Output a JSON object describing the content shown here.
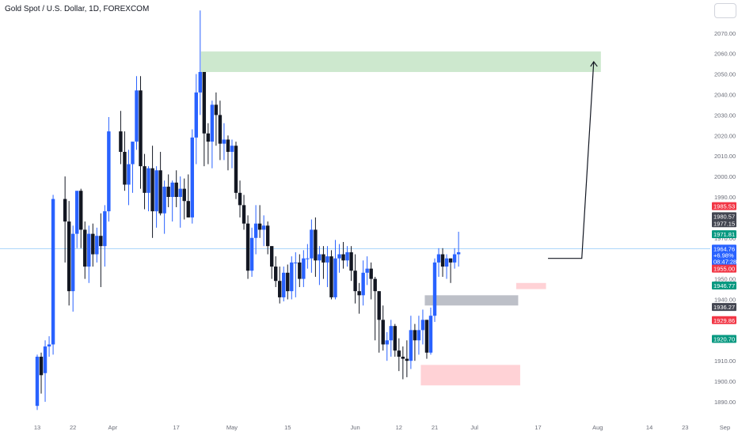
{
  "title": "Gold Spot / U.S. Dollar, 1D, FOREXCOM",
  "colors": {
    "up": "#2962ff",
    "down": "#131722",
    "target_zone": "#c8e6c9",
    "demand_zone": "#ffcdd2",
    "gray_zone": "#b2b5be",
    "crosshair": "#90caf9"
  },
  "chart_data": {
    "type": "candlestick",
    "symbol": "Gold Spot / U.S. Dollar",
    "interval": "1D",
    "source": "FOREXCOM",
    "ylim": [
      1886,
      2076
    ],
    "y_ticks": [
      "1890.00",
      "1900.00",
      "1910.00",
      "1920.00",
      "1930.00",
      "1940.00",
      "1950.00",
      "1960.00",
      "1970.00",
      "1980.00",
      "1990.00",
      "2000.00",
      "2010.00",
      "2020.00",
      "2030.00",
      "2040.00",
      "2050.00",
      "2060.00",
      "2070.00"
    ],
    "x_ticks": [
      {
        "label": "13",
        "day": 0
      },
      {
        "label": "22",
        "day": 9
      },
      {
        "label": "Apr",
        "day": 19
      },
      {
        "label": "17",
        "day": 35
      },
      {
        "label": "May",
        "day": 49
      },
      {
        "label": "15",
        "day": 63
      },
      {
        "label": "Jun",
        "day": 80
      },
      {
        "label": "12",
        "day": 91
      },
      {
        "label": "21",
        "day": 100
      },
      {
        "label": "Jul",
        "day": 110
      },
      {
        "label": "17",
        "day": 126
      },
      {
        "label": "Aug",
        "day": 141
      },
      {
        "label": "14",
        "day": 154
      },
      {
        "label": "23",
        "day": 163
      },
      {
        "label": "Sep",
        "day": 173
      }
    ],
    "candles": [
      {
        "day": 0,
        "o": 1888,
        "h": 1913,
        "l": 1886,
        "c": 1912
      },
      {
        "day": 1,
        "o": 1912,
        "h": 1914,
        "l": 1894,
        "c": 1903
      },
      {
        "day": 2,
        "o": 1904,
        "h": 1920,
        "l": 1890,
        "c": 1917
      },
      {
        "day": 3,
        "o": 1917,
        "h": 1922,
        "l": 1912,
        "c": 1918
      },
      {
        "day": 4,
        "o": 1918,
        "h": 1991,
        "l": 1913,
        "c": 1989
      },
      {
        "day": 7,
        "o": 1989,
        "h": 2000,
        "l": 1958,
        "c": 1978
      },
      {
        "day": 8,
        "o": 1978,
        "h": 1988,
        "l": 1937,
        "c": 1944
      },
      {
        "day": 9,
        "o": 1944,
        "h": 1976,
        "l": 1934,
        "c": 1972
      },
      {
        "day": 10,
        "o": 1972,
        "h": 1992,
        "l": 1965,
        "c": 1993
      },
      {
        "day": 11,
        "o": 1993,
        "h": 1994,
        "l": 1965,
        "c": 1974
      },
      {
        "day": 12,
        "o": 1974,
        "h": 1978,
        "l": 1950,
        "c": 1956
      },
      {
        "day": 13,
        "o": 1956,
        "h": 1976,
        "l": 1948,
        "c": 1972
      },
      {
        "day": 14,
        "o": 1972,
        "h": 1977,
        "l": 1956,
        "c": 1962
      },
      {
        "day": 15,
        "o": 1962,
        "h": 1975,
        "l": 1958,
        "c": 1971
      },
      {
        "day": 16,
        "o": 1971,
        "h": 1982,
        "l": 1946,
        "c": 1966
      },
      {
        "day": 17,
        "o": 1966,
        "h": 1986,
        "l": 1956,
        "c": 1983
      },
      {
        "day": 18,
        "o": 1983,
        "h": 2029,
        "l": 1978,
        "c": 2022
      },
      {
        "day": 21,
        "o": 2022,
        "h": 2032,
        "l": 2006,
        "c": 2012
      },
      {
        "day": 22,
        "o": 2012,
        "h": 2022,
        "l": 1993,
        "c": 1996
      },
      {
        "day": 23,
        "o": 1996,
        "h": 2013,
        "l": 1986,
        "c": 2006
      },
      {
        "day": 24,
        "o": 2006,
        "h": 2017,
        "l": 1992,
        "c": 2017
      },
      {
        "day": 25,
        "o": 2017,
        "h": 2049,
        "l": 2013,
        "c": 2042
      },
      {
        "day": 26,
        "o": 2042,
        "h": 2049,
        "l": 1994,
        "c": 2005
      },
      {
        "day": 27,
        "o": 2005,
        "h": 2011,
        "l": 1984,
        "c": 1992
      },
      {
        "day": 28,
        "o": 1992,
        "h": 2005,
        "l": 1983,
        "c": 2004
      },
      {
        "day": 29,
        "o": 2004,
        "h": 2015,
        "l": 1970,
        "c": 1983
      },
      {
        "day": 30,
        "o": 1983,
        "h": 2005,
        "l": 1975,
        "c": 2003
      },
      {
        "day": 31,
        "o": 2003,
        "h": 2012,
        "l": 1981,
        "c": 1982
      },
      {
        "day": 32,
        "o": 1982,
        "h": 1998,
        "l": 1972,
        "c": 1995
      },
      {
        "day": 33,
        "o": 1995,
        "h": 2001,
        "l": 1985,
        "c": 1990
      },
      {
        "day": 34,
        "o": 1990,
        "h": 1998,
        "l": 1978,
        "c": 1997
      },
      {
        "day": 35,
        "o": 1997,
        "h": 2003,
        "l": 1985,
        "c": 1990
      },
      {
        "day": 36,
        "o": 1990,
        "h": 2000,
        "l": 1975,
        "c": 1994
      },
      {
        "day": 37,
        "o": 1994,
        "h": 1999,
        "l": 1979,
        "c": 1988
      },
      {
        "day": 38,
        "o": 1988,
        "h": 2001,
        "l": 1980,
        "c": 1980
      },
      {
        "day": 39,
        "o": 1980,
        "h": 2023,
        "l": 1977,
        "c": 2019
      },
      {
        "day": 40,
        "o": 2019,
        "h": 2050,
        "l": 2006,
        "c": 2041
      },
      {
        "day": 41,
        "o": 2041,
        "h": 2081,
        "l": 2030,
        "c": 2051
      },
      {
        "day": 42,
        "o": 2051,
        "h": 2051,
        "l": 2005,
        "c": 2021
      },
      {
        "day": 43,
        "o": 2021,
        "h": 2026,
        "l": 2006,
        "c": 2017
      },
      {
        "day": 44,
        "o": 2017,
        "h": 2037,
        "l": 2004,
        "c": 2035
      },
      {
        "day": 45,
        "o": 2035,
        "h": 2041,
        "l": 2015,
        "c": 2030
      },
      {
        "day": 46,
        "o": 2030,
        "h": 2037,
        "l": 2008,
        "c": 2016
      },
      {
        "day": 47,
        "o": 2016,
        "h": 2026,
        "l": 2008,
        "c": 2018
      },
      {
        "day": 48,
        "o": 2018,
        "h": 2020,
        "l": 2003,
        "c": 2012
      },
      {
        "day": 49,
        "o": 2012,
        "h": 2018,
        "l": 2004,
        "c": 2015
      },
      {
        "day": 50,
        "o": 2015,
        "h": 2017,
        "l": 1989,
        "c": 1992
      },
      {
        "day": 51,
        "o": 1992,
        "h": 1998,
        "l": 1980,
        "c": 1986
      },
      {
        "day": 52,
        "o": 1986,
        "h": 1991,
        "l": 1974,
        "c": 1977
      },
      {
        "day": 53,
        "o": 1977,
        "h": 1981,
        "l": 1950,
        "c": 1954
      },
      {
        "day": 54,
        "o": 1954,
        "h": 1975,
        "l": 1951,
        "c": 1970
      },
      {
        "day": 55,
        "o": 1970,
        "h": 1986,
        "l": 1962,
        "c": 1977
      },
      {
        "day": 56,
        "o": 1977,
        "h": 1986,
        "l": 1970,
        "c": 1974
      },
      {
        "day": 57,
        "o": 1974,
        "h": 1981,
        "l": 1966,
        "c": 1976
      },
      {
        "day": 58,
        "o": 1976,
        "h": 1978,
        "l": 1962,
        "c": 1966
      },
      {
        "day": 59,
        "o": 1966,
        "h": 1966,
        "l": 1950,
        "c": 1956
      },
      {
        "day": 60,
        "o": 1956,
        "h": 1961,
        "l": 1946,
        "c": 1949
      },
      {
        "day": 61,
        "o": 1949,
        "h": 1956,
        "l": 1938,
        "c": 1941
      },
      {
        "day": 62,
        "o": 1941,
        "h": 1956,
        "l": 1939,
        "c": 1953
      },
      {
        "day": 63,
        "o": 1953,
        "h": 1957,
        "l": 1940,
        "c": 1944
      },
      {
        "day": 64,
        "o": 1944,
        "h": 1961,
        "l": 1940,
        "c": 1958
      },
      {
        "day": 65,
        "o": 1958,
        "h": 1963,
        "l": 1941,
        "c": 1958
      },
      {
        "day": 66,
        "o": 1958,
        "h": 1962,
        "l": 1946,
        "c": 1950
      },
      {
        "day": 67,
        "o": 1950,
        "h": 1964,
        "l": 1946,
        "c": 1960
      },
      {
        "day": 68,
        "o": 1960,
        "h": 1967,
        "l": 1955,
        "c": 1960
      },
      {
        "day": 69,
        "o": 1960,
        "h": 1979,
        "l": 1953,
        "c": 1974
      },
      {
        "day": 70,
        "o": 1974,
        "h": 1980,
        "l": 1951,
        "c": 1959
      },
      {
        "day": 71,
        "o": 1959,
        "h": 1966,
        "l": 1947,
        "c": 1962
      },
      {
        "day": 72,
        "o": 1962,
        "h": 1966,
        "l": 1950,
        "c": 1958
      },
      {
        "day": 73,
        "o": 1958,
        "h": 1966,
        "l": 1946,
        "c": 1961
      },
      {
        "day": 74,
        "o": 1961,
        "h": 1964,
        "l": 1940,
        "c": 1941
      },
      {
        "day": 75,
        "o": 1941,
        "h": 1969,
        "l": 1940,
        "c": 1960
      },
      {
        "day": 76,
        "o": 1960,
        "h": 1967,
        "l": 1953,
        "c": 1962
      },
      {
        "day": 77,
        "o": 1962,
        "h": 1968,
        "l": 1955,
        "c": 1959
      },
      {
        "day": 78,
        "o": 1959,
        "h": 1966,
        "l": 1956,
        "c": 1963
      },
      {
        "day": 79,
        "o": 1963,
        "h": 1966,
        "l": 1949,
        "c": 1954
      },
      {
        "day": 80,
        "o": 1954,
        "h": 1962,
        "l": 1938,
        "c": 1944
      },
      {
        "day": 81,
        "o": 1944,
        "h": 1948,
        "l": 1933,
        "c": 1942
      },
      {
        "day": 82,
        "o": 1942,
        "h": 1959,
        "l": 1937,
        "c": 1953
      },
      {
        "day": 83,
        "o": 1953,
        "h": 1961,
        "l": 1947,
        "c": 1955
      },
      {
        "day": 84,
        "o": 1955,
        "h": 1958,
        "l": 1940,
        "c": 1950
      },
      {
        "day": 85,
        "o": 1950,
        "h": 1951,
        "l": 1920,
        "c": 1944
      },
      {
        "day": 86,
        "o": 1944,
        "h": 1944,
        "l": 1914,
        "c": 1930
      },
      {
        "day": 87,
        "o": 1930,
        "h": 1937,
        "l": 1915,
        "c": 1918
      },
      {
        "day": 88,
        "o": 1918,
        "h": 1924,
        "l": 1910,
        "c": 1920
      },
      {
        "day": 89,
        "o": 1920,
        "h": 1930,
        "l": 1912,
        "c": 1927
      },
      {
        "day": 90,
        "o": 1927,
        "h": 1928,
        "l": 1912,
        "c": 1915
      },
      {
        "day": 91,
        "o": 1915,
        "h": 1921,
        "l": 1905,
        "c": 1912
      },
      {
        "day": 92,
        "o": 1912,
        "h": 1917,
        "l": 1901,
        "c": 1911
      },
      {
        "day": 93,
        "o": 1911,
        "h": 1920,
        "l": 1902,
        "c": 1910
      },
      {
        "day": 94,
        "o": 1910,
        "h": 1932,
        "l": 1906,
        "c": 1925
      },
      {
        "day": 95,
        "o": 1925,
        "h": 1928,
        "l": 1910,
        "c": 1920
      },
      {
        "day": 96,
        "o": 1920,
        "h": 1932,
        "l": 1913,
        "c": 1925
      },
      {
        "day": 97,
        "o": 1925,
        "h": 1935,
        "l": 1918,
        "c": 1930
      },
      {
        "day": 98,
        "o": 1930,
        "h": 1930,
        "l": 1911,
        "c": 1914
      },
      {
        "day": 99,
        "o": 1914,
        "h": 1936,
        "l": 1913,
        "c": 1932
      },
      {
        "day": 100,
        "o": 1932,
        "h": 1960,
        "l": 1929,
        "c": 1958
      },
      {
        "day": 101,
        "o": 1958,
        "h": 1965,
        "l": 1951,
        "c": 1962
      },
      {
        "day": 102,
        "o": 1962,
        "h": 1965,
        "l": 1951,
        "c": 1956
      },
      {
        "day": 103,
        "o": 1956,
        "h": 1962,
        "l": 1950,
        "c": 1960
      },
      {
        "day": 104,
        "o": 1960,
        "h": 1960,
        "l": 1948,
        "c": 1958
      },
      {
        "day": 105,
        "o": 1958,
        "h": 1965,
        "l": 1955,
        "c": 1962
      },
      {
        "day": 106,
        "o": 1962,
        "h": 1973,
        "l": 1956,
        "c": 1963
      }
    ],
    "price_tags": [
      {
        "label": "1985.53",
        "value": 1985.53,
        "color": "#f23645"
      },
      {
        "label": "1980.57",
        "value": 1980.57,
        "color": "#434651"
      },
      {
        "label": "1977.15",
        "value": 1977.15,
        "color": "#434651"
      },
      {
        "label": "1971.81",
        "value": 1971.81,
        "color": "#089981"
      },
      {
        "label": "1964.76",
        "value": 1964.76,
        "color": "#2962ff"
      },
      {
        "label": "+6.98%",
        "value": 1961.6,
        "color": "#2962ff"
      },
      {
        "label": "08:47:28",
        "value": 1958.5,
        "color": "#2962ff"
      },
      {
        "label": "1955.00",
        "value": 1955.0,
        "color": "#f23645"
      },
      {
        "label": "1946.77",
        "value": 1946.77,
        "color": "#089981"
      },
      {
        "label": "1936.27",
        "value": 1936.27,
        "color": "#434651"
      },
      {
        "label": "1929.86",
        "value": 1929.86,
        "color": "#f23645"
      },
      {
        "label": "1920.70",
        "value": 1920.7,
        "color": "#089981"
      }
    ],
    "zones": [
      {
        "name": "target-zone",
        "x0_day": 41.2,
        "x1_day": 141.8,
        "y0": 2051,
        "y1": 2061,
        "color": "#c8e6c9"
      },
      {
        "name": "gray-zone",
        "x0_day": 97.5,
        "x1_day": 121,
        "y0": 1937,
        "y1": 1942,
        "color": "#b2b5be"
      },
      {
        "name": "demand-zone-small",
        "x0_day": 120.5,
        "x1_day": 128,
        "y0": 1945,
        "y1": 1948,
        "color": "#ffcdd2"
      },
      {
        "name": "demand-zone",
        "x0_day": 96.5,
        "x1_day": 121.5,
        "y0": 1898,
        "y1": 1908,
        "color": "#ffcdd2"
      }
    ],
    "projection": {
      "from_day": 128.5,
      "from_y": 1960,
      "via_day": 137,
      "via_y": 1960,
      "to_day": 140,
      "to_y": 2056
    },
    "crosshair_y": 1964.76
  }
}
